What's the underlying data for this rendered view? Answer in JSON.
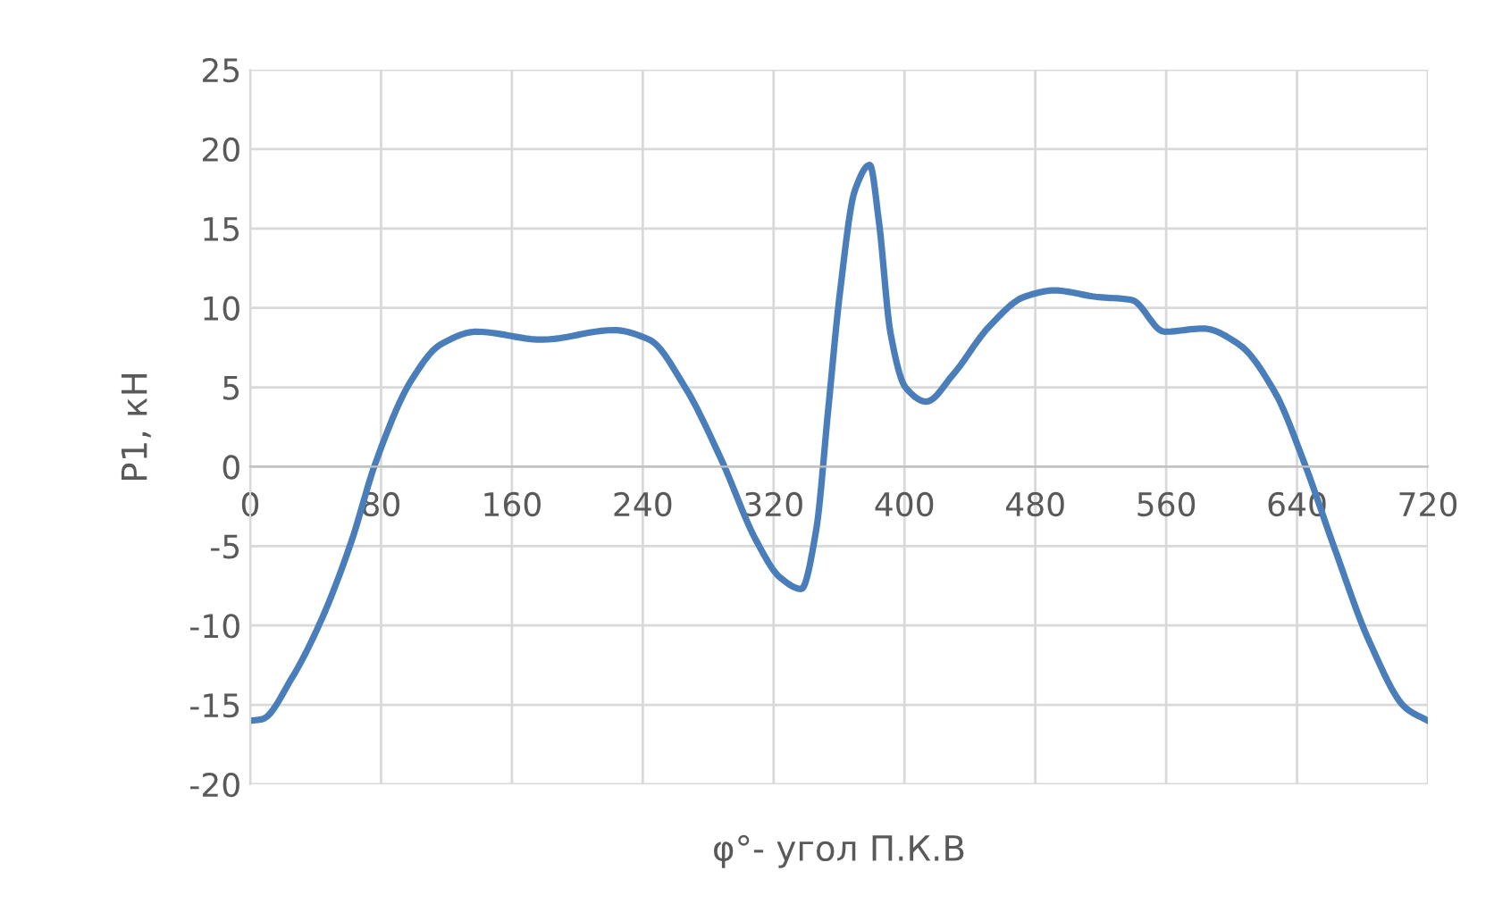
{
  "chart_data": {
    "type": "line",
    "xlabel": "φ°- угол П.К.В",
    "ylabel": "P1, кН",
    "x": [
      0,
      7.3,
      25.5,
      43.7,
      61.9,
      76.5,
      98.3,
      116.5,
      138.4,
      178.4,
      222.1,
      244,
      265.9,
      287.8,
      309.6,
      324.2,
      336.9,
      346,
      353.3,
      360.6,
      369.7,
      378.8,
      384.3,
      391.5,
      400.6,
      413.3,
      429.7,
      451.6,
      473.4,
      491.6,
      517,
      538.9,
      559,
      582.6,
      604.5,
      626.4,
      644.6,
      662.8,
      684.6,
      706.5,
      720
    ],
    "series": [
      {
        "color": "#4a7ebb",
        "values": [
          -16.0,
          -15.9,
          -13.3,
          -9.6,
          -4.7,
          0.2,
          5.4,
          7.7,
          8.5,
          8.0,
          8.6,
          8.0,
          5.0,
          0.5,
          -4.7,
          -7.0,
          -7.7,
          -4.0,
          3.5,
          11.0,
          17.4,
          19.0,
          15.5,
          8.4,
          5.0,
          4.1,
          5.8,
          8.8,
          10.7,
          11.1,
          10.7,
          10.5,
          8.5,
          8.7,
          7.7,
          4.7,
          0.2,
          -5.1,
          -11.1,
          -15.2,
          -16.0
        ]
      }
    ],
    "xlim": [
      0,
      720
    ],
    "xticks": [
      0,
      80,
      160,
      240,
      320,
      400,
      480,
      560,
      640,
      720
    ],
    "ylim": [
      -20,
      25
    ],
    "yticks": [
      -20,
      -15,
      -10,
      -5,
      0,
      5,
      10,
      15,
      20,
      25
    ],
    "grid": true,
    "marker": "none",
    "line_style": "solid"
  }
}
